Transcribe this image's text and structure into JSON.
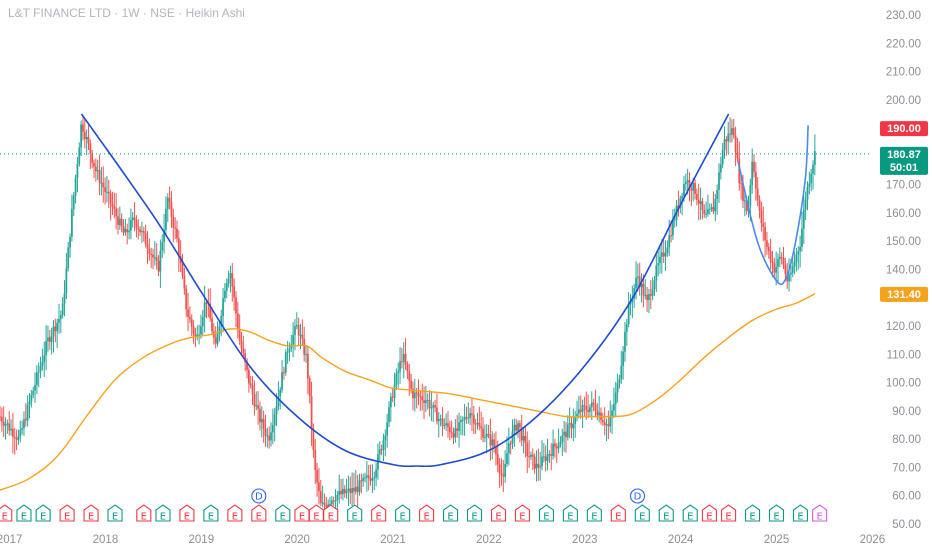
{
  "header": {
    "title": "L&T FINANCE LTD · 1W · NSE · Heikin Ashi"
  },
  "price_tags": {
    "target": {
      "value": "190.00",
      "color": "#f23645"
    },
    "last": {
      "value": "180.87",
      "countdown": "50:01",
      "color": "#089981"
    },
    "ma": {
      "value": "131.40",
      "color": "#f7a21b"
    }
  },
  "chart_data": {
    "type": "candlestick",
    "style": "Heikin Ashi",
    "symbol": "L&T FINANCE LTD",
    "interval": "1W",
    "exchange": "NSE",
    "y_axis": {
      "min": 50,
      "max": 230,
      "ticks": [
        "50.00",
        "60.00",
        "70.00",
        "80.00",
        "90.00",
        "100.00",
        "110.00",
        "120.00",
        "130.00",
        "140.00",
        "150.00",
        "160.00",
        "170.00",
        "180.00",
        "190.00",
        "200.00",
        "210.00",
        "220.00",
        "230.00"
      ]
    },
    "x_axis": {
      "range": [
        2016.9,
        2026.0
      ],
      "ticks": [
        {
          "t": 2017.0,
          "label": "2017"
        },
        {
          "t": 2018.0,
          "label": "2018"
        },
        {
          "t": 2019.0,
          "label": "2019"
        },
        {
          "t": 2020.0,
          "label": "2020"
        },
        {
          "t": 2021.0,
          "label": "2021"
        },
        {
          "t": 2022.0,
          "label": "2022"
        },
        {
          "t": 2023.0,
          "label": "2023"
        },
        {
          "t": 2024.0,
          "label": "2024"
        },
        {
          "t": 2025.0,
          "label": "2025"
        },
        {
          "t": 2026.0,
          "label": "2026"
        }
      ]
    },
    "price_path": [
      [
        2016.9,
        88
      ],
      [
        2017.1,
        80
      ],
      [
        2017.2,
        92
      ],
      [
        2017.4,
        115
      ],
      [
        2017.55,
        125
      ],
      [
        2017.65,
        160
      ],
      [
        2017.75,
        192
      ],
      [
        2017.9,
        175
      ],
      [
        2018.1,
        160
      ],
      [
        2018.2,
        152
      ],
      [
        2018.3,
        158
      ],
      [
        2018.45,
        148
      ],
      [
        2018.55,
        140
      ],
      [
        2018.65,
        165
      ],
      [
        2018.75,
        150
      ],
      [
        2018.85,
        125
      ],
      [
        2018.95,
        115
      ],
      [
        2019.05,
        130
      ],
      [
        2019.15,
        112
      ],
      [
        2019.25,
        135
      ],
      [
        2019.3,
        140
      ],
      [
        2019.4,
        115
      ],
      [
        2019.5,
        100
      ],
      [
        2019.6,
        88
      ],
      [
        2019.7,
        80
      ],
      [
        2019.8,
        95
      ],
      [
        2019.9,
        112
      ],
      [
        2020.0,
        120
      ],
      [
        2020.1,
        108
      ],
      [
        2020.18,
        70
      ],
      [
        2020.25,
        56
      ],
      [
        2020.4,
        60
      ],
      [
        2020.6,
        62
      ],
      [
        2020.8,
        68
      ],
      [
        2020.9,
        80
      ],
      [
        2021.0,
        97
      ],
      [
        2021.1,
        110
      ],
      [
        2021.2,
        96
      ],
      [
        2021.35,
        94
      ],
      [
        2021.5,
        86
      ],
      [
        2021.65,
        82
      ],
      [
        2021.8,
        90
      ],
      [
        2021.9,
        84
      ],
      [
        2022.05,
        78
      ],
      [
        2022.15,
        65
      ],
      [
        2022.2,
        78
      ],
      [
        2022.3,
        86
      ],
      [
        2022.4,
        75
      ],
      [
        2022.5,
        70
      ],
      [
        2022.65,
        76
      ],
      [
        2022.8,
        82
      ],
      [
        2022.95,
        90
      ],
      [
        2023.1,
        92
      ],
      [
        2023.25,
        84
      ],
      [
        2023.35,
        100
      ],
      [
        2023.45,
        125
      ],
      [
        2023.55,
        138
      ],
      [
        2023.65,
        128
      ],
      [
        2023.75,
        140
      ],
      [
        2023.85,
        148
      ],
      [
        2023.95,
        160
      ],
      [
        2024.05,
        172
      ],
      [
        2024.15,
        168
      ],
      [
        2024.25,
        158
      ],
      [
        2024.35,
        162
      ],
      [
        2024.45,
        185
      ],
      [
        2024.55,
        190
      ],
      [
        2024.62,
        170
      ],
      [
        2024.7,
        160
      ],
      [
        2024.75,
        180
      ],
      [
        2024.82,
        160
      ],
      [
        2024.9,
        148
      ],
      [
        2024.98,
        140
      ],
      [
        2025.05,
        145
      ],
      [
        2025.12,
        135
      ],
      [
        2025.18,
        142
      ],
      [
        2025.25,
        150
      ],
      [
        2025.3,
        165
      ],
      [
        2025.36,
        175
      ],
      [
        2025.4,
        181
      ]
    ],
    "moving_average": [
      [
        2016.9,
        62
      ],
      [
        2017.2,
        66
      ],
      [
        2017.5,
        74
      ],
      [
        2017.8,
        88
      ],
      [
        2018.1,
        101
      ],
      [
        2018.4,
        109
      ],
      [
        2018.7,
        114
      ],
      [
        2018.9,
        116
      ],
      [
        2019.1,
        117
      ],
      [
        2019.3,
        119
      ],
      [
        2019.5,
        118
      ],
      [
        2019.7,
        115
      ],
      [
        2019.9,
        113
      ],
      [
        2020.1,
        113
      ],
      [
        2020.25,
        109
      ],
      [
        2020.5,
        104
      ],
      [
        2020.75,
        101
      ],
      [
        2020.9,
        99
      ],
      [
        2021.0,
        98
      ],
      [
        2021.3,
        97
      ],
      [
        2021.6,
        96
      ],
      [
        2021.9,
        94
      ],
      [
        2022.2,
        92
      ],
      [
        2022.5,
        90
      ],
      [
        2022.8,
        88
      ],
      [
        2023.0,
        88
      ],
      [
        2023.3,
        88
      ],
      [
        2023.5,
        89
      ],
      [
        2023.75,
        94
      ],
      [
        2024.0,
        101
      ],
      [
        2024.25,
        109
      ],
      [
        2024.5,
        116
      ],
      [
        2024.75,
        122
      ],
      [
        2025.0,
        126
      ],
      [
        2025.2,
        128
      ],
      [
        2025.4,
        131.4
      ]
    ],
    "drawings": [
      {
        "name": "cup-curve",
        "points": [
          [
            2017.75,
            195
          ],
          [
            2018.5,
            159
          ],
          [
            2019.0,
            132
          ],
          [
            2019.5,
            106
          ],
          [
            2020.0,
            88
          ],
          [
            2020.5,
            76
          ],
          [
            2021.0,
            71
          ],
          [
            2021.25,
            70.5
          ],
          [
            2021.5,
            71
          ],
          [
            2022.0,
            76
          ],
          [
            2022.5,
            88
          ],
          [
            2023.0,
            106
          ],
          [
            2023.5,
            130
          ],
          [
            2024.0,
            163
          ],
          [
            2024.5,
            195
          ]
        ]
      },
      {
        "name": "handle-curve",
        "points": [
          [
            2024.6,
            178
          ],
          [
            2024.8,
            150
          ],
          [
            2025.0,
            136
          ],
          [
            2025.1,
            137
          ],
          [
            2025.2,
            150
          ],
          [
            2025.3,
            172
          ],
          [
            2025.33,
            191
          ]
        ]
      }
    ],
    "levels": [
      {
        "name": "last-price-line",
        "value": 180.87,
        "color": "#089981"
      }
    ],
    "events": [
      {
        "t": 2016.95,
        "type": "E",
        "color": "#f23645"
      },
      {
        "t": 2017.15,
        "type": "E",
        "color": "#089981"
      },
      {
        "t": 2017.35,
        "type": "E",
        "color": "#089981"
      },
      {
        "t": 2017.6,
        "type": "E",
        "color": "#f23645"
      },
      {
        "t": 2017.85,
        "type": "E",
        "color": "#f23645"
      },
      {
        "t": 2018.1,
        "type": "E",
        "color": "#089981"
      },
      {
        "t": 2018.4,
        "type": "E",
        "color": "#f23645"
      },
      {
        "t": 2018.6,
        "type": "E",
        "color": "#089981"
      },
      {
        "t": 2018.85,
        "type": "E",
        "color": "#f23645"
      },
      {
        "t": 2019.1,
        "type": "E",
        "color": "#089981"
      },
      {
        "t": 2019.35,
        "type": "E",
        "color": "#f23645"
      },
      {
        "t": 2019.6,
        "type": "E",
        "color": "#f23645"
      },
      {
        "t": 2019.85,
        "type": "E",
        "color": "#089981"
      },
      {
        "t": 2020.05,
        "type": "E",
        "color": "#f23645"
      },
      {
        "t": 2020.2,
        "type": "E",
        "color": "#f23645"
      },
      {
        "t": 2020.35,
        "type": "E",
        "color": "#f23645"
      },
      {
        "t": 2020.6,
        "type": "E",
        "color": "#089981"
      },
      {
        "t": 2020.85,
        "type": "E",
        "color": "#f23645"
      },
      {
        "t": 2021.1,
        "type": "E",
        "color": "#089981"
      },
      {
        "t": 2021.35,
        "type": "E",
        "color": "#f23645"
      },
      {
        "t": 2021.6,
        "type": "E",
        "color": "#089981"
      },
      {
        "t": 2021.85,
        "type": "E",
        "color": "#089981"
      },
      {
        "t": 2022.1,
        "type": "E",
        "color": "#f23645"
      },
      {
        "t": 2022.35,
        "type": "E",
        "color": "#f23645"
      },
      {
        "t": 2022.6,
        "type": "E",
        "color": "#089981"
      },
      {
        "t": 2022.85,
        "type": "E",
        "color": "#089981"
      },
      {
        "t": 2023.1,
        "type": "E",
        "color": "#089981"
      },
      {
        "t": 2023.35,
        "type": "E",
        "color": "#f23645"
      },
      {
        "t": 2023.6,
        "type": "E",
        "color": "#089981"
      },
      {
        "t": 2023.85,
        "type": "E",
        "color": "#089981"
      },
      {
        "t": 2024.1,
        "type": "E",
        "color": "#089981"
      },
      {
        "t": 2024.3,
        "type": "E",
        "color": "#f23645"
      },
      {
        "t": 2024.5,
        "type": "E",
        "color": "#f23645"
      },
      {
        "t": 2024.75,
        "type": "E",
        "color": "#089981"
      },
      {
        "t": 2025.0,
        "type": "E",
        "color": "#089981"
      },
      {
        "t": 2025.25,
        "type": "E",
        "color": "#089981"
      },
      {
        "t": 2025.45,
        "type": "E",
        "color": "#d05ce3"
      }
    ],
    "dividends": [
      {
        "t": 2019.6,
        "type": "D",
        "color": "#2962ff"
      },
      {
        "t": 2023.55,
        "type": "D",
        "color": "#2962ff"
      }
    ],
    "colors": {
      "up": "#26a69a",
      "down": "#ef5350",
      "cup": "#1e4bd2",
      "handle": "#4c8be8",
      "ma": "#f7a21b"
    }
  }
}
